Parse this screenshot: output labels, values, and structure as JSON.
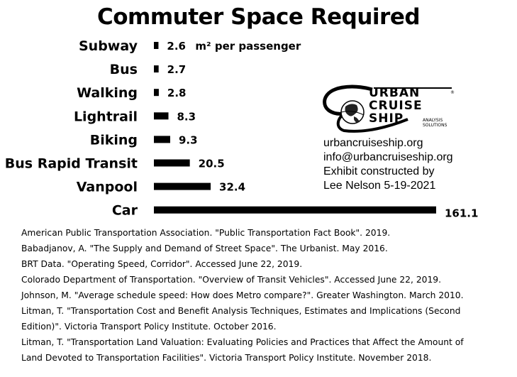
{
  "chart_data": {
    "type": "bar",
    "orientation": "horizontal",
    "title": "Commuter Space Required",
    "categories": [
      "Subway",
      "Bus",
      "Walking",
      "Lightrail",
      "Biking",
      "Bus Rapid Transit",
      "Vanpool",
      "Car"
    ],
    "values": [
      2.6,
      2.7,
      2.8,
      8.3,
      9.3,
      20.5,
      32.4,
      161.1
    ],
    "value_labels": [
      "2.6",
      "2.7",
      "2.8",
      "8.3",
      "9.3",
      "20.5",
      "32.4",
      "161.1"
    ],
    "unit_annotation": "m² per passenger",
    "bar_color": "#000000",
    "grid": false,
    "legend": "none"
  },
  "logo": {
    "line1": "URBAN",
    "line2": "CRUISE",
    "line3": "SHIP",
    "tagline_1": "ANALYSIS",
    "tagline_2": "SOLUTIONS"
  },
  "contact": [
    "urbancruiseship.org",
    "info@urbancruiseship.org",
    "Exhibit constructed by",
    "Lee Nelson 5-19-2021"
  ],
  "references": [
    "American Public Transportation Association. \"Public Transportation Fact Book\". 2019.",
    "Babadjanov, A. \"The Supply and Demand of Street Space\". The Urbanist. May 2016.",
    "BRT Data. \"Operating Speed, Corridor\". Accessed June 22, 2019.",
    "Colorado Department of Transportation. \"Overview of Transit Vehicles\". Accessed June 22, 2019.",
    "Johnson, M. \"Average schedule speed: How does Metro compare?\". Greater Washington. March 2010.",
    "Litman, T. \"Transportation Cost and Benefit Analysis Techniques, Estimates and Implications (Second",
    "Edition)\". Victoria Transport Policy Institute. October 2016.",
    "Litman, T. \"Transportation Land Valuation: Evaluating Policies and Practices that Affect the Amount of",
    "Land Devoted to Transportation Facilities\". Victoria Transport Policy Institute. November 2018."
  ]
}
